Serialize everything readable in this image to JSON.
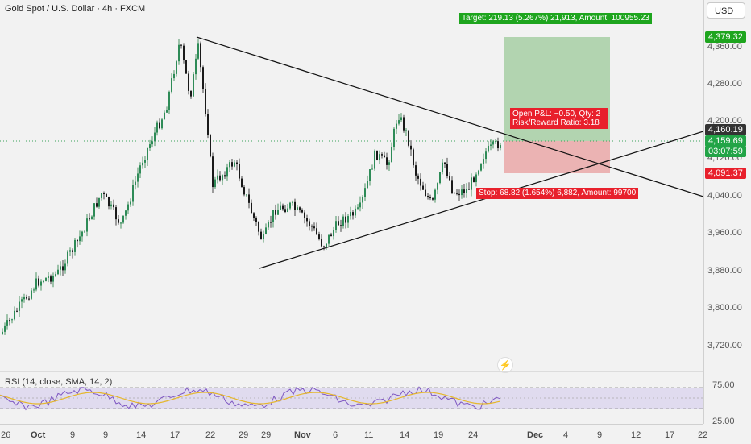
{
  "header": {
    "title": "Gold Spot / U.S. Dollar · 4h · FXCM",
    "currency": "USD"
  },
  "position": {
    "target_label": "Target: 219.13 (5.267%) 21,913, Amount: 100955.23",
    "stop_label": "Stop: 68.82 (1.654%) 6,882, Amount: 99700",
    "pnl_line1": "Open P&L: −0.50, Qty: 2",
    "pnl_line2": "Risk/Reward Ratio: 3.18",
    "entry": 4160.19,
    "target": 4379.32,
    "stop": 4091.37
  },
  "price_tags": {
    "target": "4,379.32",
    "entry": "4,160.19",
    "last": "4,159.69",
    "countdown": "03:07:59",
    "stop": "4,091.37"
  },
  "y_axis": [
    "4,360.00",
    "4,280.00",
    "4,200.00",
    "4,120.00",
    "4,040.00",
    "3,960.00",
    "3,880.00",
    "3,800.00",
    "3,720.00"
  ],
  "x_axis": [
    "26",
    "Oct",
    "9",
    "14",
    "17",
    "22",
    "29",
    "Nov",
    "6",
    "11",
    "14",
    "19",
    "24",
    "Dec",
    "4",
    "9",
    "12",
    "17",
    "22"
  ],
  "rsi": {
    "label": "RSI (14, close, SMA, 14, 2)",
    "ticks": [
      "75.00",
      "25.00"
    ]
  },
  "colors": {
    "up": "#1f7a3c",
    "down": "#1a1a1a",
    "target_green": "#1ea51e",
    "stop_red": "#e8202c",
    "rsi_line": "#7e57c2",
    "rsi_sma": "#e5b72b"
  }
}
